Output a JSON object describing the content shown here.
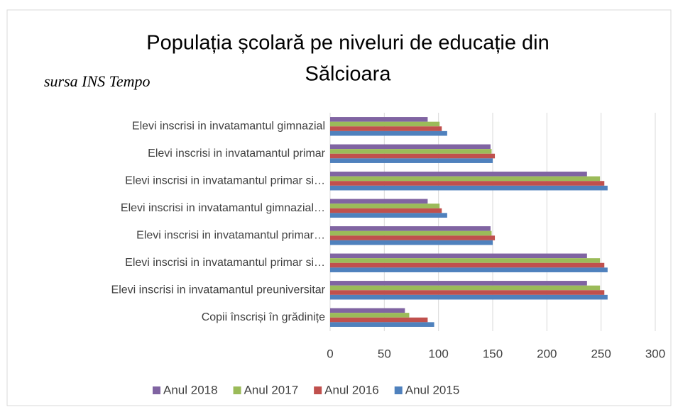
{
  "chart_data": {
    "type": "bar",
    "orientation": "horizontal",
    "title": "Populația școlară pe niveluri de educație din",
    "title_line2": "Sălcioara",
    "annotation": "sursa INS Tempo",
    "categories": [
      "Elevi inscrisi in invatamantul gimnazial",
      "Elevi inscrisi in invatamantul primar",
      "Elevi inscrisi in invatamantul primar si…",
      "Elevi inscrisi in invatamantul gimnazial…",
      "Elevi inscrisi in invatamantul primar…",
      "Elevi inscrisi in invatamantul primar si…",
      "Elevi inscrisi in invatamantul preuniversitar",
      "Copii înscriși în grădinițe"
    ],
    "series": [
      {
        "name": "Anul 2018",
        "color": "#8064a2",
        "values": [
          90,
          148,
          237,
          90,
          148,
          237,
          237,
          69
        ]
      },
      {
        "name": "Anul 2017",
        "color": "#9bbb59",
        "values": [
          101,
          149,
          249,
          101,
          149,
          249,
          249,
          73
        ]
      },
      {
        "name": "Anul 2016",
        "color": "#c0504d",
        "values": [
          103,
          152,
          253,
          103,
          152,
          253,
          253,
          90
        ]
      },
      {
        "name": "Anul 2015",
        "color": "#4f81bd",
        "values": [
          108,
          150,
          256,
          108,
          150,
          256,
          256,
          96
        ]
      }
    ],
    "xlim": [
      0,
      300
    ],
    "xticks": [
      0,
      50,
      100,
      150,
      200,
      250,
      300
    ],
    "grid": true,
    "legend": "bottom"
  }
}
